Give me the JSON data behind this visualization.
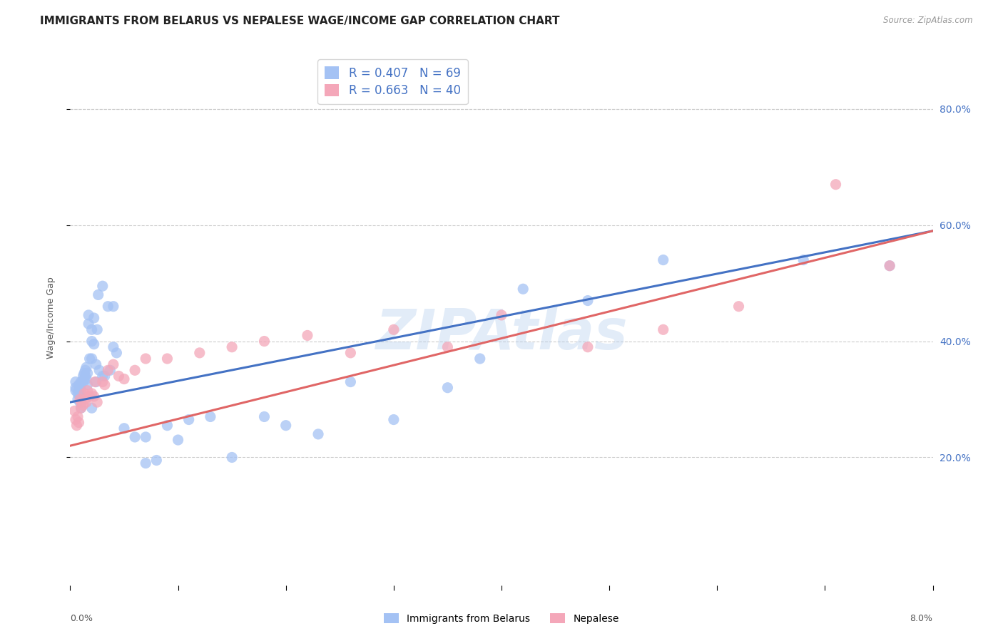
{
  "title": "IMMIGRANTS FROM BELARUS VS NEPALESE WAGE/INCOME GAP CORRELATION CHART",
  "source": "Source: ZipAtlas.com",
  "ylabel": "Wage/Income Gap",
  "ytick_vals": [
    0.2,
    0.4,
    0.6,
    0.8
  ],
  "ytick_labels": [
    "20.0%",
    "40.0%",
    "60.0%",
    "80.0%"
  ],
  "xlim": [
    0.0,
    0.08
  ],
  "ylim": [
    -0.02,
    0.9
  ],
  "legend_r1": "R = 0.407",
  "legend_n1": "N = 69",
  "legend_r2": "R = 0.663",
  "legend_n2": "N = 40",
  "legend_label1": "Immigrants from Belarus",
  "legend_label2": "Nepalese",
  "watermark": "ZIPAtlas",
  "color_blue": "#a4c2f4",
  "color_pink": "#f4a7b9",
  "line_blue": "#4472c4",
  "line_pink": "#e06666",
  "background_color": "#ffffff",
  "grid_color": "#cccccc",
  "belarus_x": [
    0.0005,
    0.0005,
    0.0005,
    0.0007,
    0.0007,
    0.0008,
    0.0008,
    0.0009,
    0.0009,
    0.001,
    0.001,
    0.001,
    0.001,
    0.001,
    0.001,
    0.0012,
    0.0012,
    0.0013,
    0.0013,
    0.0014,
    0.0014,
    0.0015,
    0.0015,
    0.0016,
    0.0016,
    0.0017,
    0.0017,
    0.0018,
    0.002,
    0.002,
    0.002,
    0.002,
    0.0022,
    0.0022,
    0.0024,
    0.0024,
    0.0025,
    0.0026,
    0.0027,
    0.003,
    0.003,
    0.0032,
    0.0035,
    0.0037,
    0.004,
    0.004,
    0.0043,
    0.005,
    0.006,
    0.007,
    0.007,
    0.008,
    0.009,
    0.01,
    0.011,
    0.013,
    0.015,
    0.018,
    0.02,
    0.023,
    0.026,
    0.03,
    0.035,
    0.038,
    0.042,
    0.048,
    0.055,
    0.068,
    0.076
  ],
  "belarus_y": [
    0.315,
    0.32,
    0.33,
    0.31,
    0.3,
    0.325,
    0.315,
    0.305,
    0.295,
    0.33,
    0.325,
    0.315,
    0.305,
    0.295,
    0.285,
    0.34,
    0.33,
    0.345,
    0.335,
    0.35,
    0.34,
    0.355,
    0.335,
    0.345,
    0.325,
    0.43,
    0.445,
    0.37,
    0.42,
    0.4,
    0.37,
    0.285,
    0.44,
    0.395,
    0.36,
    0.33,
    0.42,
    0.48,
    0.35,
    0.495,
    0.34,
    0.34,
    0.46,
    0.35,
    0.46,
    0.39,
    0.38,
    0.25,
    0.235,
    0.235,
    0.19,
    0.195,
    0.255,
    0.23,
    0.265,
    0.27,
    0.2,
    0.27,
    0.255,
    0.24,
    0.33,
    0.265,
    0.32,
    0.37,
    0.49,
    0.47,
    0.54,
    0.54,
    0.53
  ],
  "nepalese_x": [
    0.0004,
    0.0005,
    0.0006,
    0.0007,
    0.0008,
    0.0009,
    0.001,
    0.001,
    0.0012,
    0.0013,
    0.0014,
    0.0015,
    0.0016,
    0.0018,
    0.002,
    0.0022,
    0.0023,
    0.0025,
    0.003,
    0.0032,
    0.0035,
    0.004,
    0.0045,
    0.005,
    0.006,
    0.007,
    0.009,
    0.012,
    0.015,
    0.018,
    0.022,
    0.026,
    0.03,
    0.035,
    0.04,
    0.048,
    0.055,
    0.062,
    0.071,
    0.076
  ],
  "nepalese_y": [
    0.28,
    0.265,
    0.255,
    0.27,
    0.26,
    0.3,
    0.295,
    0.285,
    0.29,
    0.31,
    0.3,
    0.295,
    0.315,
    0.305,
    0.31,
    0.305,
    0.33,
    0.295,
    0.33,
    0.325,
    0.35,
    0.36,
    0.34,
    0.335,
    0.35,
    0.37,
    0.37,
    0.38,
    0.39,
    0.4,
    0.41,
    0.38,
    0.42,
    0.39,
    0.445,
    0.39,
    0.42,
    0.46,
    0.67,
    0.53
  ],
  "blue_line_x0": 0.0,
  "blue_line_y0": 0.295,
  "blue_line_x1": 0.08,
  "blue_line_y1": 0.59,
  "pink_line_x0": 0.0,
  "pink_line_y0": 0.22,
  "pink_line_x1": 0.08,
  "pink_line_y1": 0.59,
  "title_fontsize": 11,
  "axis_fontsize": 9,
  "legend_fontsize": 12
}
